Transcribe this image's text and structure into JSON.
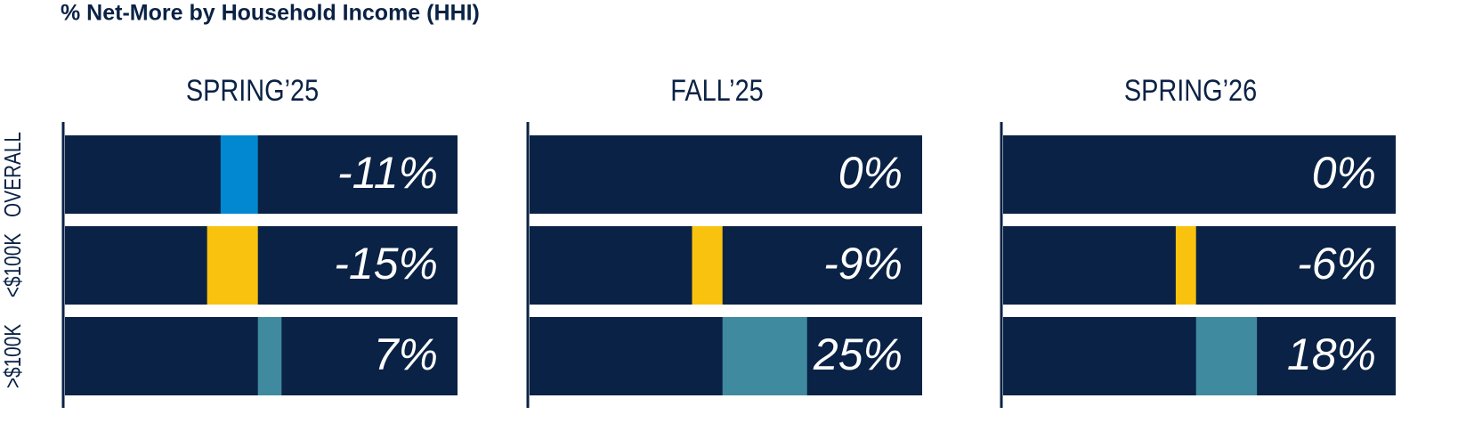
{
  "title": "% Net-More by Household Income (HHI)",
  "chart_data": {
    "type": "bar",
    "categories": [
      "OVERALL",
      "<$100K",
      ">$100K"
    ],
    "colors": [
      "#0288d1",
      "#f9c20f",
      "#3f8a9e"
    ],
    "series": [
      {
        "name": "SPRING’25",
        "values": [
          -11,
          -15,
          7
        ],
        "value_labels": [
          "-11%",
          "-15%",
          "7%"
        ]
      },
      {
        "name": "FALL’25",
        "values": [
          0,
          -9,
          25
        ],
        "value_labels": [
          "0%",
          "-9%",
          "25%"
        ]
      },
      {
        "name": "SPRING’26",
        "values": [
          0,
          -6,
          18
        ],
        "value_labels": [
          "0%",
          "-6%",
          "18%"
        ]
      }
    ],
    "xlim": [
      -57,
      59
    ]
  }
}
